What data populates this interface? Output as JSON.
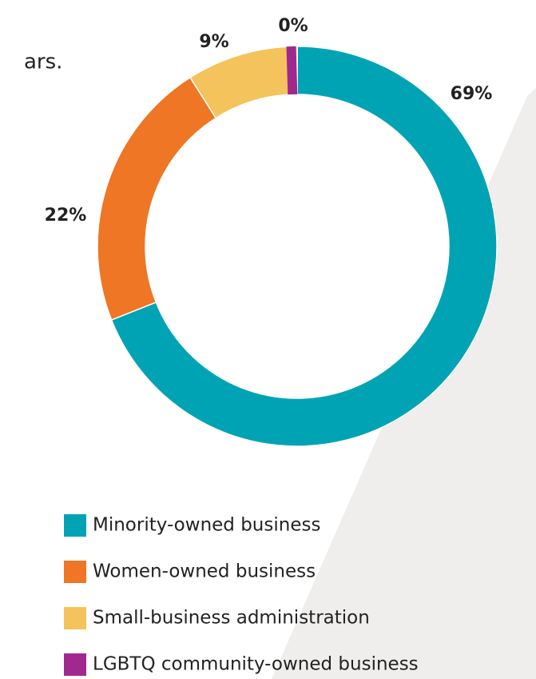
{
  "intro_text": "ars.",
  "chart_data": {
    "type": "pie",
    "categories": [
      "Minority-owned business",
      "Women-owned business",
      "Small-business administration",
      "LGBTQ community-owned business"
    ],
    "values": [
      69,
      22,
      9,
      0
    ],
    "value_labels": [
      "69%",
      "22%",
      "9%",
      "0%"
    ],
    "colors": [
      "#00a3b4",
      "#ee7624",
      "#f5c35c",
      "#a1288f"
    ],
    "donut": true
  }
}
